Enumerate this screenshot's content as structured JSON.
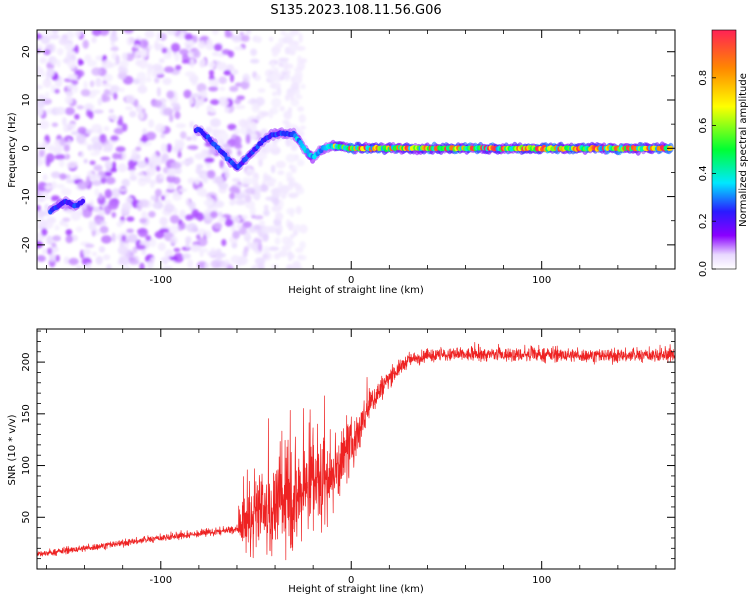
{
  "title": "S135.2023.108.11.56.G06",
  "colors": {
    "snr_line": "#ee2222",
    "colormap": [
      "#ffffff",
      "#e8d8ff",
      "#8a00ff",
      "#2a1aff",
      "#00e8ff",
      "#00ff33",
      "#ffff00",
      "#ff8800",
      "#ff2255"
    ]
  },
  "chart_data": [
    {
      "type": "heatmap",
      "xlabel": "Height of straight line (km)",
      "ylabel": "Frequency (Hz)",
      "xlim": [
        -165,
        170
      ],
      "ylim": [
        -25,
        24.5
      ],
      "x_ticks": [
        -100,
        0,
        100
      ],
      "y_ticks": [
        -20,
        -10,
        0,
        10,
        20
      ],
      "colorbar": {
        "label": "Normalized spectral amplitude",
        "range": [
          0.0,
          1.0
        ],
        "ticks": [
          0.0,
          0.2,
          0.4,
          0.6,
          0.8
        ]
      },
      "ridge": {
        "x": [
          -158,
          -150,
          -145,
          -80,
          -70,
          -65,
          -60,
          -55,
          -50,
          -45,
          -40,
          -35,
          -30,
          -25,
          -20,
          -15,
          -10,
          0,
          170
        ],
        "y": [
          -13,
          -11,
          -12,
          4,
          0,
          -2,
          -4,
          -2,
          0,
          2,
          3,
          3,
          3,
          0,
          -2,
          0,
          0.5,
          0,
          0
        ]
      }
    },
    {
      "type": "line",
      "xlabel": "Height of straight line (km)",
      "ylabel": "SNR (10 * v/v)",
      "xlim": [
        -165,
        170
      ],
      "ylim": [
        0,
        232
      ],
      "x_ticks": [
        -100,
        0,
        100
      ],
      "y_ticks": [
        50,
        100,
        150,
        200
      ],
      "series": [
        {
          "x": [
            -165,
            -140,
            -120,
            -100,
            -80,
            -60,
            -56,
            -50,
            -40,
            -30,
            -20,
            -10,
            0,
            10,
            20,
            30,
            40,
            60,
            100,
            140,
            170
          ],
          "y": [
            14,
            20,
            25,
            30,
            34,
            38,
            42,
            50,
            58,
            68,
            78,
            90,
            118,
            160,
            185,
            202,
            206,
            207,
            207,
            206,
            207
          ],
          "noise": [
            4,
            5,
            5,
            5,
            5,
            6,
            45,
            55,
            60,
            70,
            80,
            60,
            40,
            25,
            14,
            10,
            10,
            10,
            10,
            10,
            10
          ]
        }
      ]
    }
  ]
}
